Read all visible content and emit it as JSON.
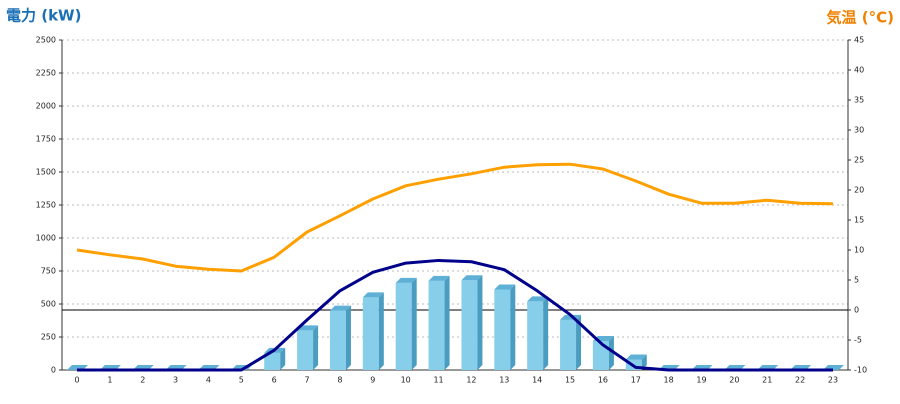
{
  "chart_data": {
    "type": "bar_line",
    "y_label": "電力 (kW)",
    "y2_label": "気温 (°C)",
    "categories": [
      "0",
      "1",
      "2",
      "3",
      "4",
      "5",
      "6",
      "7",
      "8",
      "9",
      "10",
      "11",
      "12",
      "13",
      "14",
      "15",
      "16",
      "17",
      "18",
      "19",
      "20",
      "21",
      "22",
      "23"
    ],
    "series": [
      {
        "type": "bar",
        "color": "#87ceeb",
        "values": [
          0,
          0,
          0,
          0,
          0,
          0,
          130,
          300,
          450,
          550,
          660,
          675,
          680,
          610,
          520,
          380,
          220,
          80,
          0,
          0,
          0,
          0,
          0,
          0
        ]
      },
      {
        "type": "line",
        "color": "#00008b",
        "values": [
          0,
          0,
          0,
          0,
          0,
          0,
          150,
          380,
          600,
          740,
          810,
          830,
          820,
          760,
          600,
          420,
          190,
          20,
          0,
          0,
          0,
          0,
          0,
          0
        ]
      },
      {
        "type": "line",
        "axis": "y2",
        "color": "#ffa000",
        "values": [
          10,
          9.2,
          8.5,
          7.3,
          6.8,
          6.5,
          8.8,
          13,
          15.7,
          18.5,
          20.7,
          21.8,
          22.7,
          23.8,
          24.2,
          24.3,
          23.5,
          21.5,
          19.3,
          17.8,
          17.8,
          18.3,
          17.8,
          17.7
        ]
      }
    ],
    "ylim": [
      0,
      2500
    ],
    "yticks": [
      0,
      250,
      500,
      750,
      1000,
      1250,
      1500,
      1750,
      2000,
      2250,
      2500
    ],
    "y2lim": [
      -10,
      45
    ],
    "y2ticks": [
      -10,
      -5,
      0,
      5,
      10,
      15,
      20,
      25,
      30,
      35,
      40,
      45
    ],
    "grid": true,
    "y2_zero_line": true
  }
}
